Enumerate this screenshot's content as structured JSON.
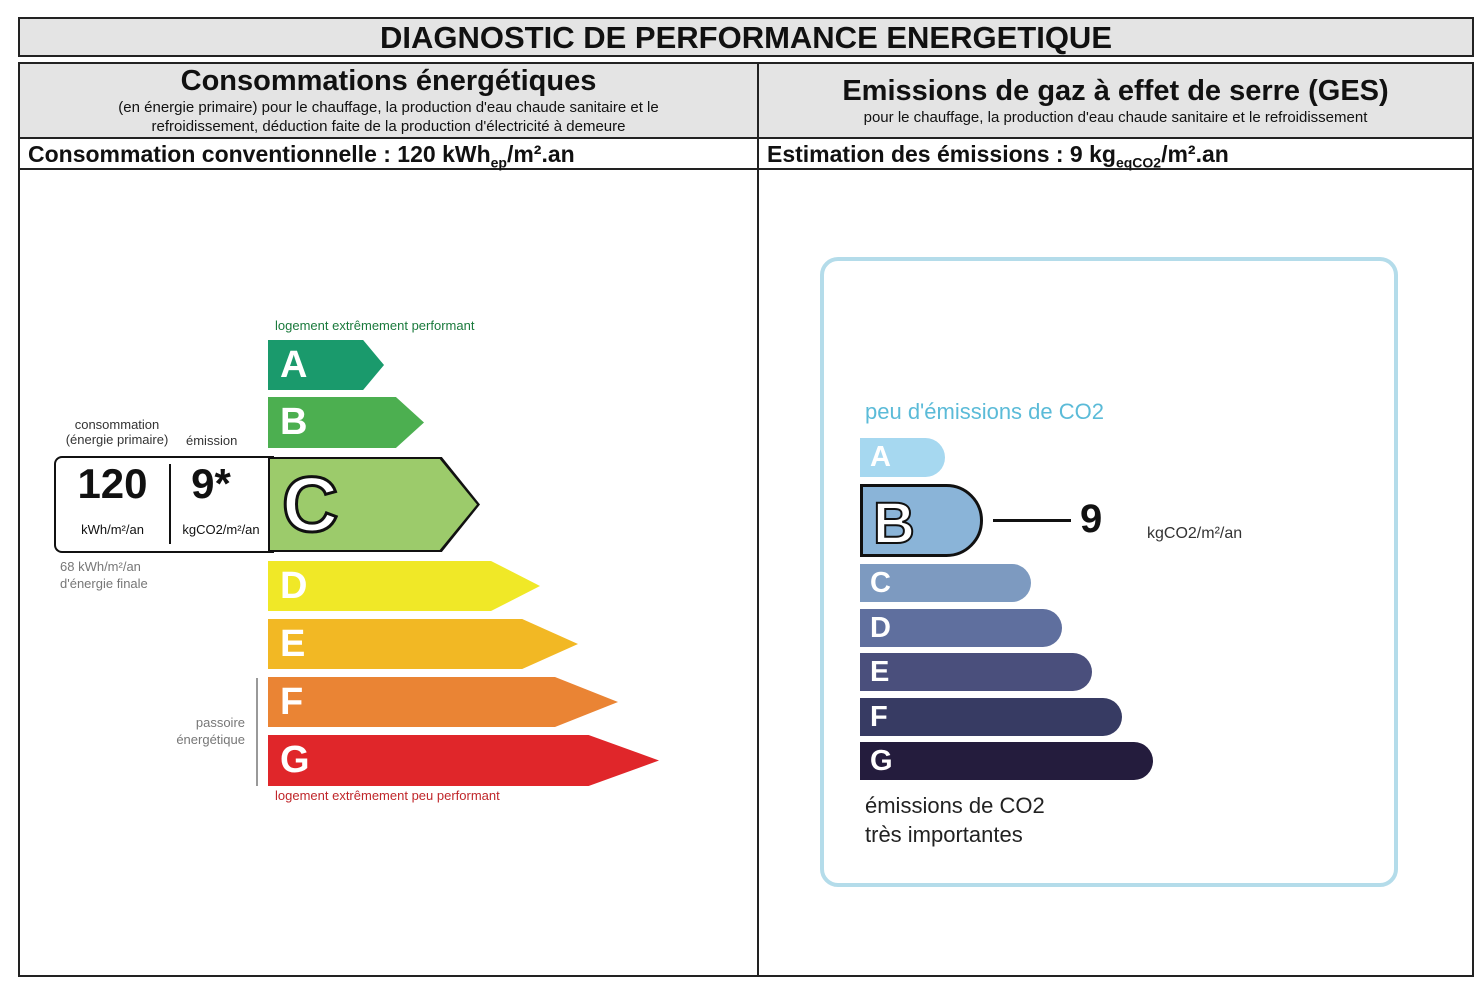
{
  "title": "DIAGNOSTIC DE PERFORMANCE ENERGETIQUE",
  "energy": {
    "heading": "Consommations énergétiques",
    "subheading": "(en énergie primaire) pour le chauffage, la production d'eau chaude sanitaire et le refroidissement, déduction faite de la production d'électricité à demeure",
    "line_prefix": "Consommation conventionnelle : 120 kWh",
    "line_sub": "ep",
    "line_suffix": "/m².an",
    "top_label": "logement extrêmement performant",
    "bottom_label": "logement extrêmement peu performant",
    "consumption_label": "consommation (énergie primaire)",
    "emission_label": "émission",
    "consumption_value": "120",
    "consumption_unit": "kWh/m²/an",
    "emission_value": "9*",
    "emission_unit": "kgCO2/m²/an",
    "final_energy": "68 kWh/m²/an d'énergie finale",
    "passoire": "passoire énergétique",
    "rating": "C",
    "classes": [
      {
        "letter": "A",
        "color": "#1a9a6c"
      },
      {
        "letter": "B",
        "color": "#4caf50"
      },
      {
        "letter": "C",
        "color": "#9ccb6b"
      },
      {
        "letter": "D",
        "color": "#f0e827"
      },
      {
        "letter": "E",
        "color": "#f2b824"
      },
      {
        "letter": "F",
        "color": "#ea8434"
      },
      {
        "letter": "G",
        "color": "#e0262a"
      }
    ]
  },
  "ges": {
    "heading": "Emissions de gaz à effet de serre (GES)",
    "subheading": "pour le chauffage, la production d'eau chaude sanitaire et le refroidissement",
    "line_prefix": "Estimation des émissions : 9 kg",
    "line_sub": "eqCO2",
    "line_suffix": "/m².an",
    "top_label": "peu d'émissions de CO2",
    "bottom_label_1": "émissions de CO2",
    "bottom_label_2": "très importantes",
    "value": "9",
    "unit": "kgCO2/m²/an",
    "rating": "B",
    "classes": [
      {
        "letter": "A",
        "color": "#a6d8f0"
      },
      {
        "letter": "B",
        "color": "#8ab4d8"
      },
      {
        "letter": "C",
        "color": "#7d9ac0"
      },
      {
        "letter": "D",
        "color": "#5f6f9e"
      },
      {
        "letter": "E",
        "color": "#4a4f7c"
      },
      {
        "letter": "F",
        "color": "#373b63"
      },
      {
        "letter": "G",
        "color": "#241c3d"
      }
    ]
  }
}
